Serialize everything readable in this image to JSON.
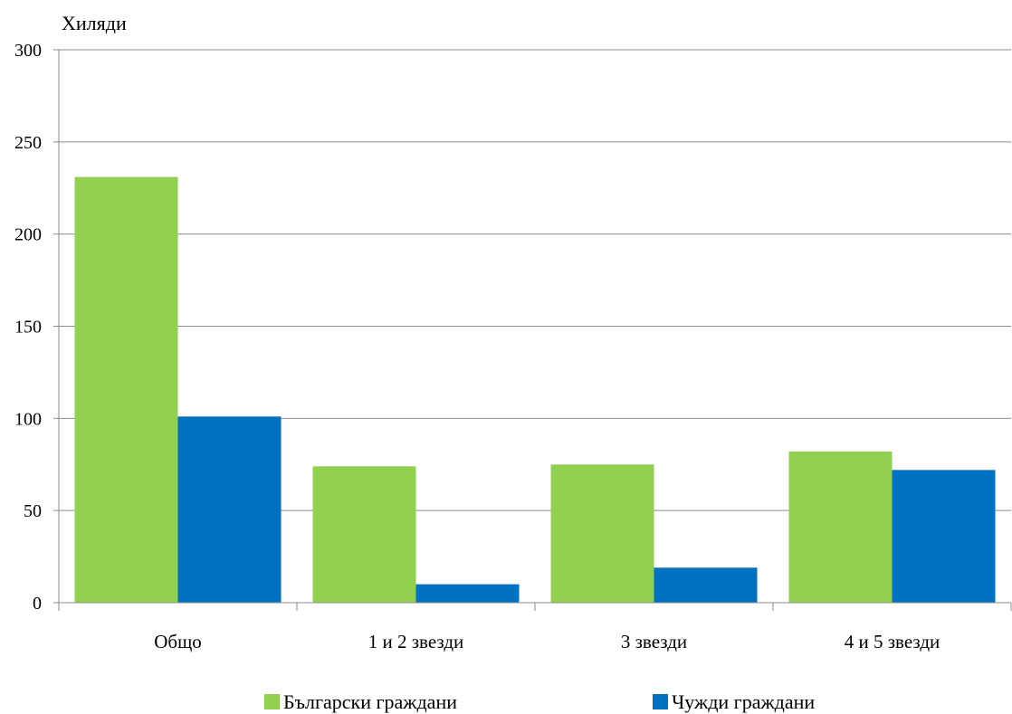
{
  "chart_data": {
    "type": "bar",
    "ylabel": "Хиляди",
    "categories": [
      "Общо",
      "1 и 2 звезди",
      "3 звезди",
      "4 и 5 звезди"
    ],
    "ylim": [
      0,
      300
    ],
    "yticks": [
      0,
      50,
      100,
      150,
      200,
      250,
      300
    ],
    "grid": true,
    "legend": "bottom",
    "series": [
      {
        "name": "Български граждани",
        "color": "#92d050",
        "values": [
          231,
          74,
          75,
          82
        ]
      },
      {
        "name": "Чужди граждани",
        "color": "#0070c0",
        "values": [
          101,
          10,
          19,
          72
        ]
      }
    ]
  }
}
